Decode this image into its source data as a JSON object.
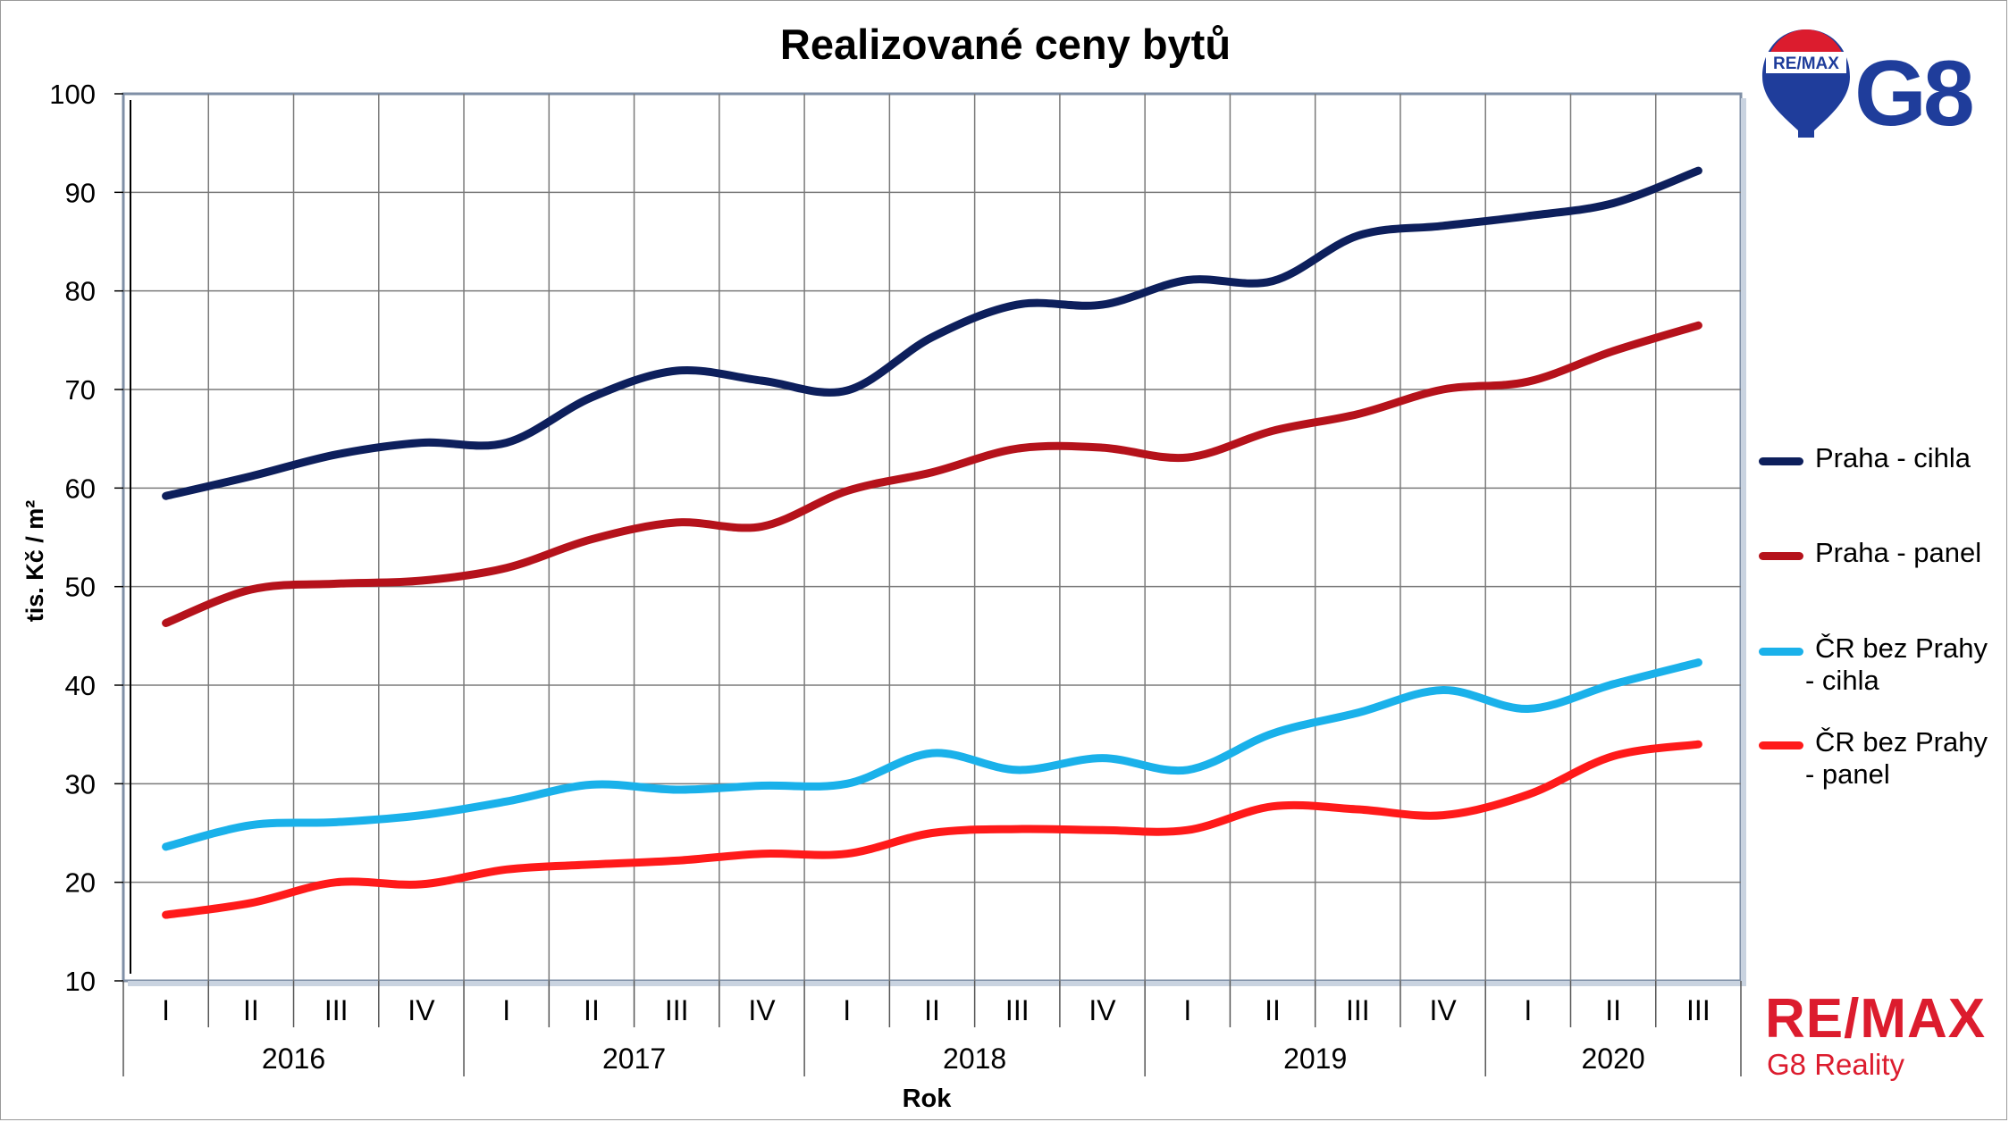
{
  "chart_data": {
    "type": "line",
    "title": "Realizované ceny bytů",
    "xlabel": "Rok",
    "ylabel": "tis. Kč / m²",
    "ylim": [
      10,
      100
    ],
    "yticks": [
      10,
      20,
      30,
      40,
      50,
      60,
      70,
      80,
      90,
      100
    ],
    "grid": true,
    "legend": "right",
    "quarters": [
      "I",
      "II",
      "III",
      "IV",
      "I",
      "II",
      "III",
      "IV",
      "I",
      "II",
      "III",
      "IV",
      "I",
      "II",
      "III",
      "IV",
      "I",
      "II",
      "III"
    ],
    "years": [
      {
        "label": "2016",
        "quarters": 4
      },
      {
        "label": "2017",
        "quarters": 4
      },
      {
        "label": "2018",
        "quarters": 4
      },
      {
        "label": "2019",
        "quarters": 4
      },
      {
        "label": "2020",
        "quarters": 3
      }
    ],
    "series": [
      {
        "name": "Praha - cihla",
        "color": "#0d1f5c",
        "values": [
          59.2,
          61.2,
          63.4,
          64.6,
          64.6,
          69.2,
          71.9,
          70.9,
          69.9,
          75.3,
          78.6,
          78.6,
          81.1,
          81.0,
          85.6,
          86.6,
          87.6,
          88.9,
          92.2
        ]
      },
      {
        "name": "Praha - panel",
        "color": "#b5121b",
        "values": [
          46.3,
          49.7,
          50.3,
          50.6,
          51.9,
          54.8,
          56.5,
          56.1,
          59.7,
          61.6,
          64.0,
          64.1,
          63.1,
          65.8,
          67.5,
          70.0,
          70.8,
          73.9,
          76.5
        ]
      },
      {
        "name": "ČR bez Prahy - cihla",
        "color": "#1ab1ea",
        "values": [
          23.6,
          25.8,
          26.1,
          26.8,
          28.2,
          29.9,
          29.4,
          29.8,
          30.0,
          33.1,
          31.4,
          32.6,
          31.4,
          35.1,
          37.2,
          39.5,
          37.6,
          40.1,
          42.3
        ]
      },
      {
        "name": "ČR bez Prahy - panel",
        "color": "#ff1a1a",
        "values": [
          16.7,
          17.9,
          20.0,
          19.8,
          21.3,
          21.8,
          22.2,
          22.9,
          22.9,
          25.0,
          25.4,
          25.3,
          25.3,
          27.7,
          27.4,
          26.8,
          28.9,
          32.8,
          34.0
        ]
      }
    ]
  },
  "legend": [
    {
      "line1": "Praha - cihla",
      "line2": ""
    },
    {
      "line1": "Praha - panel",
      "line2": ""
    },
    {
      "line1": "ČR bez Prahy",
      "line2": "- cihla"
    },
    {
      "line1": "ČR bez Prahy",
      "line2": "- panel"
    }
  ],
  "logo_top": {
    "badge": "RE/MAX",
    "text": "G8"
  },
  "logo_bottom": {
    "brand": "RE/MAX",
    "sub": "G8 Reality"
  },
  "colors": {
    "logo_blue": "#1f3d9b",
    "logo_red": "#dc1c2e"
  }
}
